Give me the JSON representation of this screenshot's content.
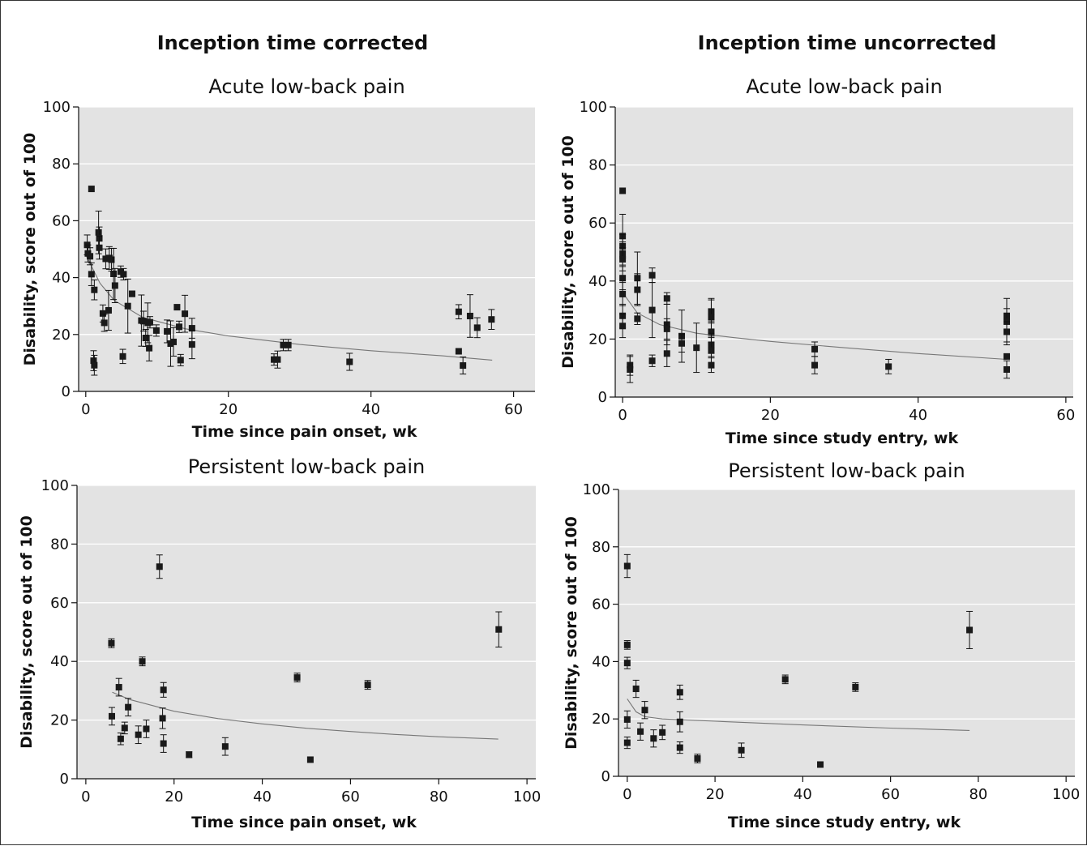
{
  "column_headers": [
    "Inception time corrected",
    "Inception time uncorrected"
  ],
  "chart_data": [
    {
      "type": "scatter",
      "title": "Acute low-back pain",
      "xlabel": "Time since pain onset, wk",
      "ylabel": "Disability, score out of 100",
      "xlim": [
        -1,
        63
      ],
      "ylim": [
        0,
        100
      ],
      "xticks": [
        0,
        20,
        40,
        60
      ],
      "yticks": [
        0,
        20,
        40,
        60,
        80,
        100
      ],
      "grid": true,
      "points": [
        {
          "x": 0.8,
          "y": 71.2,
          "err": 0
        },
        {
          "x": 0.2,
          "y": 51.5,
          "err": 3.5
        },
        {
          "x": 0.3,
          "y": 48.5,
          "err": 3
        },
        {
          "x": 0.6,
          "y": 47.5,
          "err": 3
        },
        {
          "x": 0.8,
          "y": 41.2,
          "err": 4
        },
        {
          "x": 1.2,
          "y": 35.7,
          "err": 3.5
        },
        {
          "x": 1.1,
          "y": 10.8,
          "err": 3.5
        },
        {
          "x": 1.2,
          "y": 9.2,
          "err": 3.5
        },
        {
          "x": 1.8,
          "y": 55.9,
          "err": 7.5
        },
        {
          "x": 1.9,
          "y": 53.8,
          "err": 4
        },
        {
          "x": 1.9,
          "y": 50.5,
          "err": 4
        },
        {
          "x": 2.4,
          "y": 27.4,
          "err": 3
        },
        {
          "x": 2.6,
          "y": 24.1,
          "err": 3
        },
        {
          "x": 2.8,
          "y": 46.6,
          "err": 3.5
        },
        {
          "x": 3.2,
          "y": 28.5,
          "err": 7
        },
        {
          "x": 3.3,
          "y": 46.9,
          "err": 4
        },
        {
          "x": 3.6,
          "y": 46.3,
          "err": 4
        },
        {
          "x": 3.9,
          "y": 41.3,
          "err": 9
        },
        {
          "x": 4.1,
          "y": 37.2,
          "err": 6
        },
        {
          "x": 4.9,
          "y": 42.1,
          "err": 2
        },
        {
          "x": 5.2,
          "y": 12.3,
          "err": 2.5
        },
        {
          "x": 5.3,
          "y": 41.2,
          "err": 2
        },
        {
          "x": 5.9,
          "y": 30.0,
          "err": 9.5
        },
        {
          "x": 6.5,
          "y": 34.3,
          "err": 1
        },
        {
          "x": 7.8,
          "y": 24.9,
          "err": 9
        },
        {
          "x": 8.1,
          "y": 24.7,
          "err": 3.5
        },
        {
          "x": 8.4,
          "y": 18.8,
          "err": 3
        },
        {
          "x": 8.7,
          "y": 24.1,
          "err": 7
        },
        {
          "x": 8.9,
          "y": 15.2,
          "err": 4.5
        },
        {
          "x": 9.0,
          "y": 24.3,
          "err": 2
        },
        {
          "x": 9.9,
          "y": 21.4,
          "err": 2
        },
        {
          "x": 11.4,
          "y": 21.1,
          "err": 4
        },
        {
          "x": 11.9,
          "y": 16.8,
          "err": 8
        },
        {
          "x": 12.3,
          "y": 17.4,
          "err": 5
        },
        {
          "x": 12.8,
          "y": 29.6,
          "err": 0
        },
        {
          "x": 13.1,
          "y": 22.7,
          "err": 2
        },
        {
          "x": 13.3,
          "y": 11.0,
          "err": 2
        },
        {
          "x": 13.9,
          "y": 27.3,
          "err": 6.5
        },
        {
          "x": 14.9,
          "y": 22.2,
          "err": 3.5
        },
        {
          "x": 14.9,
          "y": 16.5,
          "err": 5
        },
        {
          "x": 26.4,
          "y": 11.2,
          "err": 2
        },
        {
          "x": 26.9,
          "y": 11.2,
          "err": 3
        },
        {
          "x": 27.7,
          "y": 16.3,
          "err": 2
        },
        {
          "x": 28.4,
          "y": 16.3,
          "err": 2
        },
        {
          "x": 37.0,
          "y": 10.4,
          "err": 3
        },
        {
          "x": 52.3,
          "y": 28.0,
          "err": 2.5
        },
        {
          "x": 52.3,
          "y": 14.1,
          "err": 0
        },
        {
          "x": 52.9,
          "y": 9.1,
          "err": 3
        },
        {
          "x": 53.9,
          "y": 26.5,
          "err": 7.5
        },
        {
          "x": 54.9,
          "y": 22.4,
          "err": 3.5
        },
        {
          "x": 56.9,
          "y": 25.3,
          "err": 3.5
        }
      ],
      "trend": [
        [
          0,
          48
        ],
        [
          2,
          38
        ],
        [
          4,
          32
        ],
        [
          8,
          26
        ],
        [
          14,
          22
        ],
        [
          20,
          19.5
        ],
        [
          30,
          16.5
        ],
        [
          40,
          14.3
        ],
        [
          50,
          12.5
        ],
        [
          57,
          11
        ]
      ]
    },
    {
      "type": "scatter",
      "title": "Acute low-back pain",
      "xlabel": "Time since study entry, wk",
      "ylabel": "Disability, score out of 100",
      "xlim": [
        -1,
        61
      ],
      "ylim": [
        0,
        100
      ],
      "xticks": [
        0,
        20,
        40,
        60
      ],
      "yticks": [
        0,
        20,
        40,
        60,
        80,
        100
      ],
      "grid": true,
      "points": [
        {
          "x": 0,
          "y": 71.1,
          "err": 0
        },
        {
          "x": 0,
          "y": 55.5,
          "err": 7.5
        },
        {
          "x": 0,
          "y": 52,
          "err": 4
        },
        {
          "x": 0,
          "y": 49.5,
          "err": 4
        },
        {
          "x": 0,
          "y": 47.5,
          "err": 4
        },
        {
          "x": 0,
          "y": 41,
          "err": 4
        },
        {
          "x": 0,
          "y": 35.5,
          "err": 4
        },
        {
          "x": 0,
          "y": 28,
          "err": 4
        },
        {
          "x": 0,
          "y": 24.5,
          "err": 4
        },
        {
          "x": 1,
          "y": 11,
          "err": 3.5
        },
        {
          "x": 1,
          "y": 9.5,
          "err": 4.5
        },
        {
          "x": 2,
          "y": 41,
          "err": 9
        },
        {
          "x": 2,
          "y": 37,
          "err": 5.5
        },
        {
          "x": 2,
          "y": 27,
          "err": 2
        },
        {
          "x": 4,
          "y": 42,
          "err": 2.5
        },
        {
          "x": 4,
          "y": 30,
          "err": 9.5
        },
        {
          "x": 4,
          "y": 12.5,
          "err": 2
        },
        {
          "x": 6,
          "y": 34,
          "err": 2
        },
        {
          "x": 6,
          "y": 25,
          "err": 7
        },
        {
          "x": 6,
          "y": 23.5,
          "err": 3.5
        },
        {
          "x": 6,
          "y": 15,
          "err": 4.5
        },
        {
          "x": 8,
          "y": 21,
          "err": 9
        },
        {
          "x": 8,
          "y": 18.5,
          "err": 3
        },
        {
          "x": 10,
          "y": 17,
          "err": 8.5
        },
        {
          "x": 12,
          "y": 29.5,
          "err": 4
        },
        {
          "x": 12,
          "y": 27.5,
          "err": 6.5
        },
        {
          "x": 12,
          "y": 22.5,
          "err": 3.5
        },
        {
          "x": 12,
          "y": 18,
          "err": 4
        },
        {
          "x": 12,
          "y": 16,
          "err": 4.5
        },
        {
          "x": 12,
          "y": 11,
          "err": 2.5
        },
        {
          "x": 26,
          "y": 16.5,
          "err": 2.5
        },
        {
          "x": 26,
          "y": 11,
          "err": 3
        },
        {
          "x": 36,
          "y": 10.5,
          "err": 2.5
        },
        {
          "x": 52,
          "y": 28,
          "err": 2.5
        },
        {
          "x": 52,
          "y": 26,
          "err": 8
        },
        {
          "x": 52,
          "y": 22.5,
          "err": 3.5
        },
        {
          "x": 52,
          "y": 14,
          "err": 0
        },
        {
          "x": 52,
          "y": 9.5,
          "err": 3
        }
      ],
      "trend": [
        [
          0,
          36
        ],
        [
          2,
          29
        ],
        [
          5,
          25
        ],
        [
          10,
          22
        ],
        [
          15,
          20.5
        ],
        [
          20,
          19.2
        ],
        [
          30,
          17
        ],
        [
          40,
          15
        ],
        [
          52,
          13
        ]
      ]
    },
    {
      "type": "scatter",
      "title": "Persistent low-back pain",
      "xlabel": "Time since pain onset, wk",
      "ylabel": "Disability, score out of 100",
      "xlim": [
        -2,
        102
      ],
      "ylim": [
        0,
        100
      ],
      "xticks": [
        0,
        20,
        40,
        60,
        80,
        100
      ],
      "yticks": [
        0,
        20,
        40,
        60,
        80,
        100
      ],
      "grid": true,
      "points": [
        {
          "x": 5.8,
          "y": 46.2,
          "err": 1.5
        },
        {
          "x": 5.9,
          "y": 21.3,
          "err": 3
        },
        {
          "x": 7.5,
          "y": 31.2,
          "err": 3
        },
        {
          "x": 7.9,
          "y": 13.6,
          "err": 2
        },
        {
          "x": 8.8,
          "y": 17.3,
          "err": 2
        },
        {
          "x": 9.6,
          "y": 24.4,
          "err": 3
        },
        {
          "x": 11.9,
          "y": 15.0,
          "err": 3
        },
        {
          "x": 12.8,
          "y": 40.0,
          "err": 1.5
        },
        {
          "x": 13.7,
          "y": 17.0,
          "err": 3
        },
        {
          "x": 16.7,
          "y": 72.3,
          "err": 4
        },
        {
          "x": 17.6,
          "y": 30.3,
          "err": 2.5
        },
        {
          "x": 17.4,
          "y": 20.6,
          "err": 3.5
        },
        {
          "x": 17.6,
          "y": 12.0,
          "err": 3
        },
        {
          "x": 23.4,
          "y": 8.2,
          "err": 1
        },
        {
          "x": 31.6,
          "y": 11.0,
          "err": 3
        },
        {
          "x": 47.9,
          "y": 34.5,
          "err": 1.5
        },
        {
          "x": 50.9,
          "y": 6.5,
          "err": 0
        },
        {
          "x": 63.9,
          "y": 32.0,
          "err": 1.5
        },
        {
          "x": 93.6,
          "y": 50.9,
          "err": 6
        }
      ],
      "trend": [
        [
          6,
          29.5
        ],
        [
          10,
          27
        ],
        [
          20,
          23
        ],
        [
          30,
          20.5
        ],
        [
          40,
          18.7
        ],
        [
          50,
          17.2
        ],
        [
          60,
          16.1
        ],
        [
          70,
          15.1
        ],
        [
          80,
          14.3
        ],
        [
          93.5,
          13.5
        ]
      ]
    },
    {
      "type": "scatter",
      "title": "Persistent low-back pain",
      "xlabel": "Time since study entry, wk",
      "ylabel": "Disability, score out of 100",
      "xlim": [
        -2,
        102
      ],
      "ylim": [
        0,
        100
      ],
      "xticks": [
        0,
        20,
        40,
        60,
        80,
        100
      ],
      "yticks": [
        0,
        20,
        40,
        60,
        80,
        100
      ],
      "grid": true,
      "points": [
        {
          "x": 0,
          "y": 73.3,
          "err": 4
        },
        {
          "x": 0,
          "y": 45.8,
          "err": 1.5
        },
        {
          "x": 0,
          "y": 39.5,
          "err": 2
        },
        {
          "x": 0,
          "y": 19.8,
          "err": 3
        },
        {
          "x": 0,
          "y": 11.7,
          "err": 2
        },
        {
          "x": 2,
          "y": 30.5,
          "err": 3
        },
        {
          "x": 3,
          "y": 15.6,
          "err": 3
        },
        {
          "x": 4,
          "y": 23.1,
          "err": 3
        },
        {
          "x": 6,
          "y": 13.2,
          "err": 3
        },
        {
          "x": 8,
          "y": 15.3,
          "err": 2.5
        },
        {
          "x": 12,
          "y": 29.3,
          "err": 2.5
        },
        {
          "x": 12,
          "y": 19.0,
          "err": 3.5
        },
        {
          "x": 12,
          "y": 10.0,
          "err": 2
        },
        {
          "x": 16,
          "y": 6.2,
          "err": 1.5
        },
        {
          "x": 26,
          "y": 9.1,
          "err": 2.5
        },
        {
          "x": 36,
          "y": 33.8,
          "err": 1.5
        },
        {
          "x": 44,
          "y": 4.1,
          "err": 0
        },
        {
          "x": 52,
          "y": 31.1,
          "err": 1.5
        },
        {
          "x": 78,
          "y": 51.0,
          "err": 6.5
        }
      ],
      "trend": [
        [
          0,
          27
        ],
        [
          2,
          22.5
        ],
        [
          4,
          20.8
        ],
        [
          8,
          20
        ],
        [
          20,
          19.2
        ],
        [
          40,
          17.9
        ],
        [
          60,
          16.8
        ],
        [
          78,
          16
        ]
      ]
    }
  ]
}
